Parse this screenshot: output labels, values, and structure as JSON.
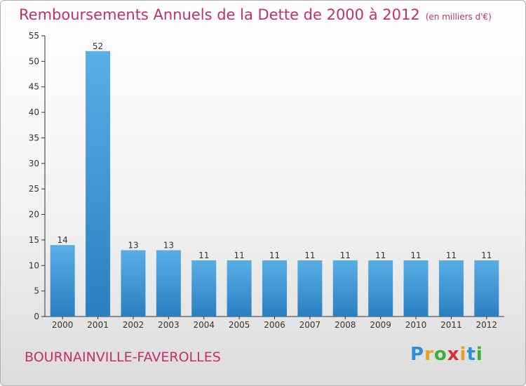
{
  "title": "Remboursements Annuels de la Dette de 2000 à 2012",
  "title_unit": "(en milliers d'€)",
  "location": "BOURNAINVILLE-FAVEROLLES",
  "logo": "Proxiti",
  "colors": {
    "title": "#c0306a",
    "bar_top": "#5aaee6",
    "bar_bottom": "#2a7fc0",
    "axis": "#333333",
    "text": "#333333"
  },
  "chart_data": {
    "type": "bar",
    "title": "Remboursements Annuels de la Dette de 2000 à 2012",
    "categories": [
      "2000",
      "2001",
      "2002",
      "2003",
      "2004",
      "2005",
      "2006",
      "2007",
      "2008",
      "2009",
      "2010",
      "2011",
      "2012"
    ],
    "values": [
      14,
      52,
      13,
      13,
      11,
      11,
      11,
      11,
      11,
      11,
      11,
      11,
      11
    ],
    "data_labels": [
      "14",
      "52",
      "13",
      "13",
      "11",
      "11",
      "11",
      "11",
      "11",
      "11",
      "11",
      "11",
      "11"
    ],
    "y_ticks": [
      0,
      5,
      10,
      15,
      20,
      25,
      30,
      35,
      40,
      45,
      50,
      55
    ],
    "ylim": [
      0,
      55
    ],
    "grid": false,
    "xlabel": "",
    "ylabel": ""
  }
}
